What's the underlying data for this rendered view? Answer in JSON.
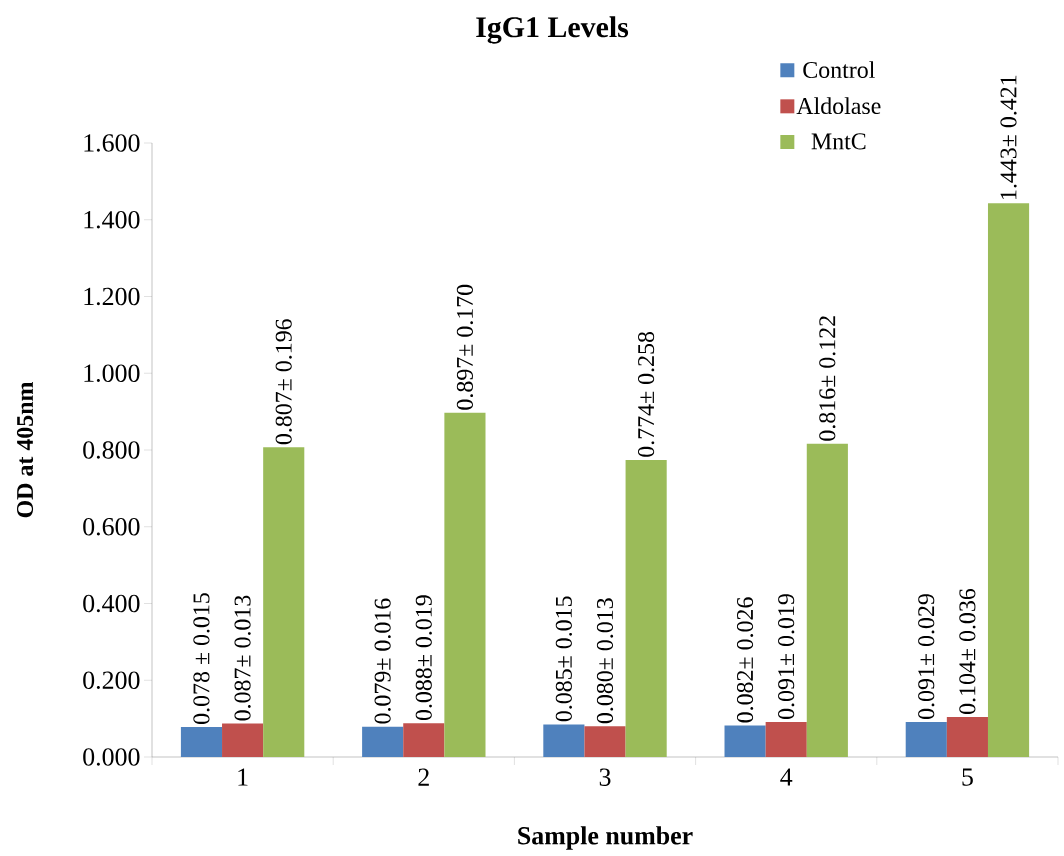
{
  "chart_data": {
    "type": "bar",
    "title": "IgG1 Levels",
    "xlabel": "Sample number",
    "ylabel": "OD at 405nm",
    "categories": [
      "1",
      "2",
      "3",
      "4",
      "5"
    ],
    "series": [
      {
        "name": "Control",
        "color": "#4f81bd",
        "values": [
          0.078,
          0.079,
          0.085,
          0.082,
          0.091
        ],
        "value_labels": [
          "0.078 ± 0.015",
          "0.079± 0.016",
          "0.085± 0.015",
          "0.082± 0.026",
          "0.091± 0.029"
        ]
      },
      {
        "name": "Aldolase",
        "color": "#c0504d",
        "values": [
          0.087,
          0.088,
          0.08,
          0.091,
          0.104
        ],
        "value_labels": [
          "0.087± 0.013",
          "0.088± 0.019",
          "0.080± 0.013",
          "0.091± 0.019",
          "0.104± 0.036"
        ]
      },
      {
        "name": "MntC",
        "color": "#9bbb59",
        "values": [
          0.807,
          0.897,
          0.774,
          0.816,
          1.443
        ],
        "value_labels": [
          "0.807± 0.196",
          "0.897± 0.170",
          "0.774± 0.258",
          "0.816± 0.122",
          "1.443± 0.421"
        ]
      }
    ],
    "ylim": [
      0,
      1.6
    ],
    "yticks": [
      {
        "value": 0,
        "label": "0.000"
      },
      {
        "value": 0.2,
        "label": "0.200"
      },
      {
        "value": 0.4,
        "label": "0.400"
      },
      {
        "value": 0.6,
        "label": "0.600"
      },
      {
        "value": 0.8,
        "label": "0.800"
      },
      {
        "value": 1.0,
        "label": "1.000"
      },
      {
        "value": 1.2,
        "label": "1.200"
      },
      {
        "value": 1.4,
        "label": "1.400"
      },
      {
        "value": 1.6,
        "label": "1.600"
      }
    ],
    "legend": "top right",
    "grid": false
  }
}
